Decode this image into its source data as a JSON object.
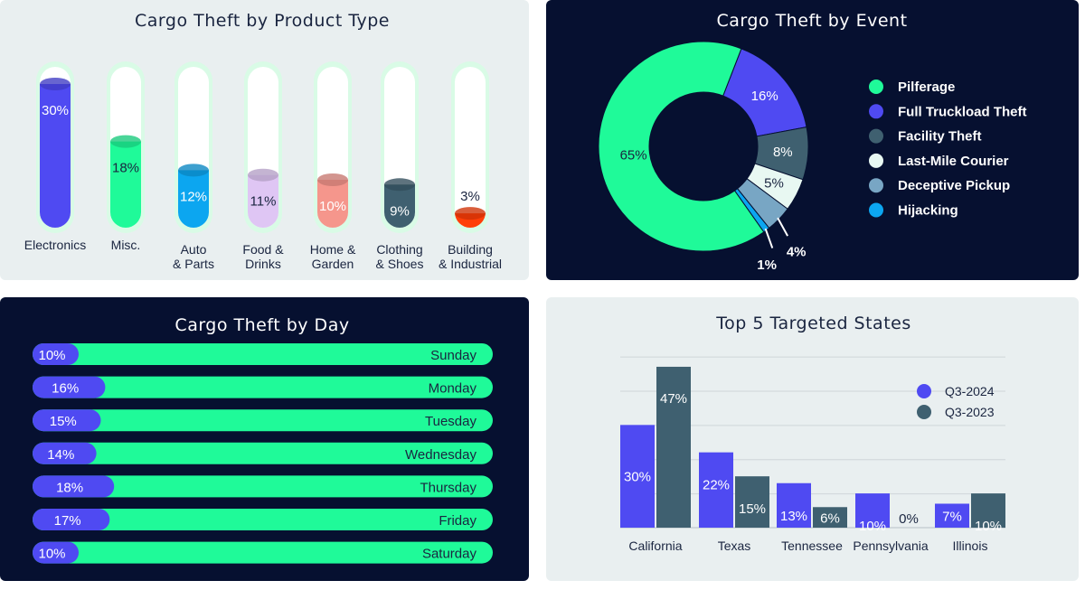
{
  "colors": {
    "green": "#1ffa99",
    "blue": "#4f4af2",
    "slate": "#3f6070",
    "navy": "#061030",
    "panel_light": "#e9eff0",
    "sky": "#0ca6f0"
  },
  "chart_data": [
    {
      "type": "bar",
      "title": "Cargo Theft by Product Type",
      "categories": [
        [
          "Electronics"
        ],
        [
          "Misc."
        ],
        [
          "Auto",
          "& Parts"
        ],
        [
          "Food &",
          "Drinks"
        ],
        [
          "Home &",
          "Garden"
        ],
        [
          "Clothing",
          "& Shoes"
        ],
        [
          "Building",
          "& Industrial"
        ]
      ],
      "values": [
        30,
        18,
        12,
        11,
        10,
        9,
        3
      ],
      "value_labels": [
        "30%",
        "18%",
        "12%",
        "11%",
        "10%",
        "9%",
        "3%"
      ],
      "colors": [
        "#4f4af2",
        "#1ffa99",
        "#0ca6f0",
        "#dfc6f4",
        "#f5968c",
        "#3f6070",
        "#ff3f08"
      ],
      "ylim": [
        0,
        33
      ]
    },
    {
      "type": "pie",
      "title": "Cargo Theft by Event",
      "labels": [
        "Pilferage",
        "Full Truckload Theft",
        "Facility Theft",
        "Last-Mile Courier",
        "Deceptive Pickup",
        "Hijacking"
      ],
      "values": [
        65,
        16,
        8,
        5,
        4,
        1
      ],
      "value_labels": [
        "65%",
        "16%",
        "8%",
        "5%",
        "4%",
        "1%"
      ],
      "colors": [
        "#1ffa99",
        "#4f4af2",
        "#3f6070",
        "#e8f8f2",
        "#78a6c4",
        "#0ca6f0"
      ],
      "donut": true,
      "legend": "right"
    },
    {
      "type": "bar",
      "orientation": "horizontal",
      "title": "Cargo Theft by Day",
      "categories": [
        "Sunday",
        "Monday",
        "Tuesday",
        "Wednesday",
        "Thursday",
        "Friday",
        "Saturday"
      ],
      "values": [
        10,
        16,
        15,
        14,
        18,
        17,
        10
      ],
      "value_labels": [
        "10%",
        "16%",
        "15%",
        "14%",
        "18%",
        "17%",
        "10%"
      ]
    },
    {
      "type": "bar",
      "title": "Top 5 Targeted States",
      "categories": [
        "California",
        "Texas",
        "Tennessee",
        "Pennsylvania",
        "Illinois"
      ],
      "series": [
        {
          "name": "Q3-2024",
          "values": [
            30,
            22,
            13,
            10,
            7
          ],
          "labels": [
            "30%",
            "22%",
            "13%",
            "10%",
            "7%"
          ],
          "color": "#4f4af2"
        },
        {
          "name": "Q3-2023",
          "values": [
            47,
            15,
            6,
            0,
            10
          ],
          "labels": [
            "47%",
            "15%",
            "6%",
            "0%",
            "10%"
          ],
          "color": "#3f6070"
        }
      ],
      "ylim": [
        0,
        52
      ],
      "legend": "top-right",
      "grid": true
    }
  ]
}
